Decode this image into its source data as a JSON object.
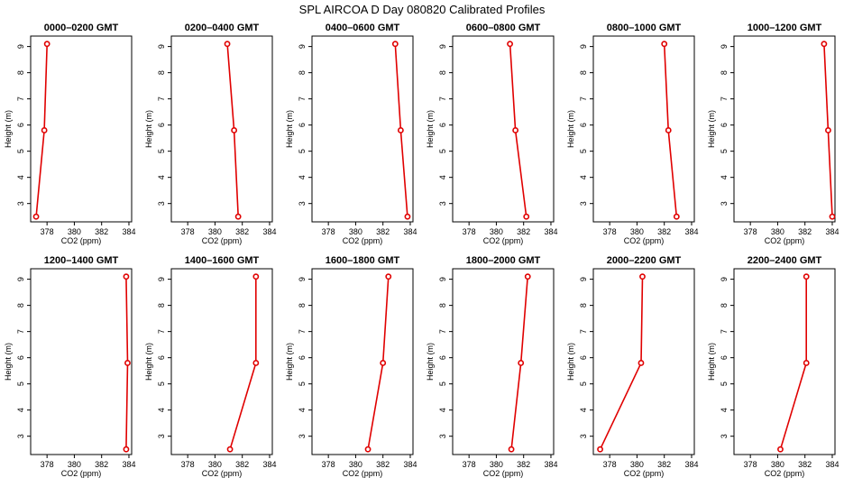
{
  "title": "SPL AIRCOA D  Day 080820  Calibrated Profiles",
  "colors": {
    "series": "#e00000",
    "axis": "#000000",
    "background": "#ffffff"
  },
  "chart_data": [
    {
      "type": "line",
      "title": "0000–0200 GMT",
      "xlabel": "CO2 (ppm)",
      "ylabel": "Height (m)",
      "xlim": [
        376.8,
        384.2
      ],
      "ylim": [
        2.3,
        9.4
      ],
      "xticks": [
        378,
        380,
        382,
        384
      ],
      "yticks": [
        3,
        4,
        5,
        6,
        7,
        8,
        9
      ],
      "grid": false,
      "points": [
        {
          "x": 378.0,
          "y": 9.1
        },
        {
          "x": 377.8,
          "y": 5.8
        },
        {
          "x": 377.2,
          "y": 2.5
        }
      ]
    },
    {
      "type": "line",
      "title": "0200–0400 GMT",
      "xlabel": "CO2 (ppm)",
      "ylabel": "Height (m)",
      "xlim": [
        376.8,
        384.2
      ],
      "ylim": [
        2.3,
        9.4
      ],
      "xticks": [
        378,
        380,
        382,
        384
      ],
      "yticks": [
        3,
        4,
        5,
        6,
        7,
        8,
        9
      ],
      "grid": false,
      "points": [
        {
          "x": 380.9,
          "y": 9.1
        },
        {
          "x": 381.4,
          "y": 5.8
        },
        {
          "x": 381.7,
          "y": 2.5
        }
      ]
    },
    {
      "type": "line",
      "title": "0400–0600 GMT",
      "xlabel": "CO2 (ppm)",
      "ylabel": "Height (m)",
      "xlim": [
        376.8,
        384.2
      ],
      "ylim": [
        2.3,
        9.4
      ],
      "xticks": [
        378,
        380,
        382,
        384
      ],
      "yticks": [
        3,
        4,
        5,
        6,
        7,
        8,
        9
      ],
      "grid": false,
      "points": [
        {
          "x": 382.9,
          "y": 9.1
        },
        {
          "x": 383.3,
          "y": 5.8
        },
        {
          "x": 383.8,
          "y": 2.5
        }
      ]
    },
    {
      "type": "line",
      "title": "0600–0800 GMT",
      "xlabel": "CO2 (ppm)",
      "ylabel": "Height (m)",
      "xlim": [
        376.8,
        384.2
      ],
      "ylim": [
        2.3,
        9.4
      ],
      "xticks": [
        378,
        380,
        382,
        384
      ],
      "yticks": [
        3,
        4,
        5,
        6,
        7,
        8,
        9
      ],
      "grid": false,
      "points": [
        {
          "x": 381.0,
          "y": 9.1
        },
        {
          "x": 381.4,
          "y": 5.8
        },
        {
          "x": 382.2,
          "y": 2.5
        }
      ]
    },
    {
      "type": "line",
      "title": "0800–1000 GMT",
      "xlabel": "CO2 (ppm)",
      "ylabel": "Height (m)",
      "xlim": [
        376.8,
        384.2
      ],
      "ylim": [
        2.3,
        9.4
      ],
      "xticks": [
        378,
        380,
        382,
        384
      ],
      "yticks": [
        3,
        4,
        5,
        6,
        7,
        8,
        9
      ],
      "grid": false,
      "points": [
        {
          "x": 382.0,
          "y": 9.1
        },
        {
          "x": 382.3,
          "y": 5.8
        },
        {
          "x": 382.9,
          "y": 2.5
        }
      ]
    },
    {
      "type": "line",
      "title": "1000–1200 GMT",
      "xlabel": "CO2 (ppm)",
      "ylabel": "Height (m)",
      "xlim": [
        376.8,
        384.2
      ],
      "ylim": [
        2.3,
        9.4
      ],
      "xticks": [
        378,
        380,
        382,
        384
      ],
      "yticks": [
        3,
        4,
        5,
        6,
        7,
        8,
        9
      ],
      "grid": false,
      "points": [
        {
          "x": 383.4,
          "y": 9.1
        },
        {
          "x": 383.7,
          "y": 5.8
        },
        {
          "x": 384.0,
          "y": 2.5
        }
      ]
    },
    {
      "type": "line",
      "title": "1200–1400 GMT",
      "xlabel": "CO2 (ppm)",
      "ylabel": "Height (m)",
      "xlim": [
        376.8,
        384.2
      ],
      "ylim": [
        2.3,
        9.4
      ],
      "xticks": [
        378,
        380,
        382,
        384
      ],
      "yticks": [
        3,
        4,
        5,
        6,
        7,
        8,
        9
      ],
      "grid": false,
      "points": [
        {
          "x": 383.8,
          "y": 9.1
        },
        {
          "x": 383.9,
          "y": 5.8
        },
        {
          "x": 383.8,
          "y": 2.5
        }
      ]
    },
    {
      "type": "line",
      "title": "1400–1600 GMT",
      "xlabel": "CO2 (ppm)",
      "ylabel": "Height (m)",
      "xlim": [
        376.8,
        384.2
      ],
      "ylim": [
        2.3,
        9.4
      ],
      "xticks": [
        378,
        380,
        382,
        384
      ],
      "yticks": [
        3,
        4,
        5,
        6,
        7,
        8,
        9
      ],
      "grid": false,
      "points": [
        {
          "x": 383.0,
          "y": 9.1
        },
        {
          "x": 383.0,
          "y": 5.8
        },
        {
          "x": 381.1,
          "y": 2.5
        }
      ]
    },
    {
      "type": "line",
      "title": "1600–1800 GMT",
      "xlabel": "CO2 (ppm)",
      "ylabel": "Height (m)",
      "xlim": [
        376.8,
        384.2
      ],
      "ylim": [
        2.3,
        9.4
      ],
      "xticks": [
        378,
        380,
        382,
        384
      ],
      "yticks": [
        3,
        4,
        5,
        6,
        7,
        8,
        9
      ],
      "grid": false,
      "points": [
        {
          "x": 382.4,
          "y": 9.1
        },
        {
          "x": 382.0,
          "y": 5.8
        },
        {
          "x": 380.9,
          "y": 2.5
        }
      ]
    },
    {
      "type": "line",
      "title": "1800–2000 GMT",
      "xlabel": "CO2 (ppm)",
      "ylabel": "Height (m)",
      "xlim": [
        376.8,
        384.2
      ],
      "ylim": [
        2.3,
        9.4
      ],
      "xticks": [
        378,
        380,
        382,
        384
      ],
      "yticks": [
        3,
        4,
        5,
        6,
        7,
        8,
        9
      ],
      "grid": false,
      "points": [
        {
          "x": 382.3,
          "y": 9.1
        },
        {
          "x": 381.8,
          "y": 5.8
        },
        {
          "x": 381.1,
          "y": 2.5
        }
      ]
    },
    {
      "type": "line",
      "title": "2000–2200 GMT",
      "xlabel": "CO2 (ppm)",
      "ylabel": "Height (m)",
      "xlim": [
        376.8,
        384.2
      ],
      "ylim": [
        2.3,
        9.4
      ],
      "xticks": [
        378,
        380,
        382,
        384
      ],
      "yticks": [
        3,
        4,
        5,
        6,
        7,
        8,
        9
      ],
      "grid": false,
      "points": [
        {
          "x": 380.4,
          "y": 9.1
        },
        {
          "x": 380.3,
          "y": 5.8
        },
        {
          "x": 377.3,
          "y": 2.5
        }
      ]
    },
    {
      "type": "line",
      "title": "2200–2400 GMT",
      "xlabel": "CO2 (ppm)",
      "ylabel": "Height (m)",
      "xlim": [
        376.8,
        384.2
      ],
      "ylim": [
        2.3,
        9.4
      ],
      "xticks": [
        378,
        380,
        382,
        384
      ],
      "yticks": [
        3,
        4,
        5,
        6,
        7,
        8,
        9
      ],
      "grid": false,
      "points": [
        {
          "x": 382.1,
          "y": 9.1
        },
        {
          "x": 382.1,
          "y": 5.8
        },
        {
          "x": 380.2,
          "y": 2.5
        }
      ]
    }
  ]
}
